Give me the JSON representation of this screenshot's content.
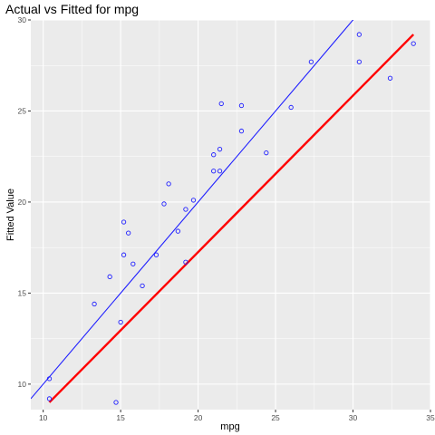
{
  "chart_data": {
    "type": "scatter",
    "title": "Actual vs Fitted for mpg",
    "xlabel": "mpg",
    "ylabel": "Fitted Value",
    "xlim": [
      9.2,
      35.0
    ],
    "ylim": [
      8.6,
      30.0
    ],
    "x_ticks": [
      10,
      15,
      20,
      25,
      30,
      35
    ],
    "y_ticks": [
      10,
      15,
      20,
      25,
      30
    ],
    "grid": true,
    "colors": {
      "points": "#1f1fff",
      "identity_line": "#1f1fff",
      "fit_line": "#ff0000",
      "panel_background": "#ebebeb",
      "grid": "#ffffff"
    },
    "points": [
      {
        "x": 10.4,
        "y": 10.3
      },
      {
        "x": 10.4,
        "y": 9.2
      },
      {
        "x": 13.3,
        "y": 14.4
      },
      {
        "x": 14.3,
        "y": 15.9
      },
      {
        "x": 14.7,
        "y": 9.0
      },
      {
        "x": 15.0,
        "y": 13.4
      },
      {
        "x": 15.2,
        "y": 18.9
      },
      {
        "x": 15.2,
        "y": 17.1
      },
      {
        "x": 15.5,
        "y": 18.3
      },
      {
        "x": 15.8,
        "y": 16.6
      },
      {
        "x": 16.4,
        "y": 15.4
      },
      {
        "x": 17.3,
        "y": 17.1
      },
      {
        "x": 17.8,
        "y": 19.9
      },
      {
        "x": 18.1,
        "y": 21.0
      },
      {
        "x": 18.7,
        "y": 18.4
      },
      {
        "x": 19.2,
        "y": 19.6
      },
      {
        "x": 19.2,
        "y": 16.7
      },
      {
        "x": 19.7,
        "y": 20.1
      },
      {
        "x": 21.0,
        "y": 22.6
      },
      {
        "x": 21.0,
        "y": 21.7
      },
      {
        "x": 21.4,
        "y": 22.9
      },
      {
        "x": 21.4,
        "y": 21.7
      },
      {
        "x": 21.5,
        "y": 25.4
      },
      {
        "x": 22.8,
        "y": 25.3
      },
      {
        "x": 22.8,
        "y": 23.9
      },
      {
        "x": 24.4,
        "y": 22.7
      },
      {
        "x": 26.0,
        "y": 25.2
      },
      {
        "x": 27.3,
        "y": 27.7
      },
      {
        "x": 30.4,
        "y": 29.2
      },
      {
        "x": 30.4,
        "y": 27.7
      },
      {
        "x": 32.4,
        "y": 26.8
      },
      {
        "x": 33.9,
        "y": 28.7
      }
    ],
    "identity_line": {
      "slope": 1,
      "intercept": 0
    },
    "fit_line": {
      "x": [
        10.4,
        33.9
      ],
      "y": [
        9.0,
        29.2
      ]
    }
  }
}
